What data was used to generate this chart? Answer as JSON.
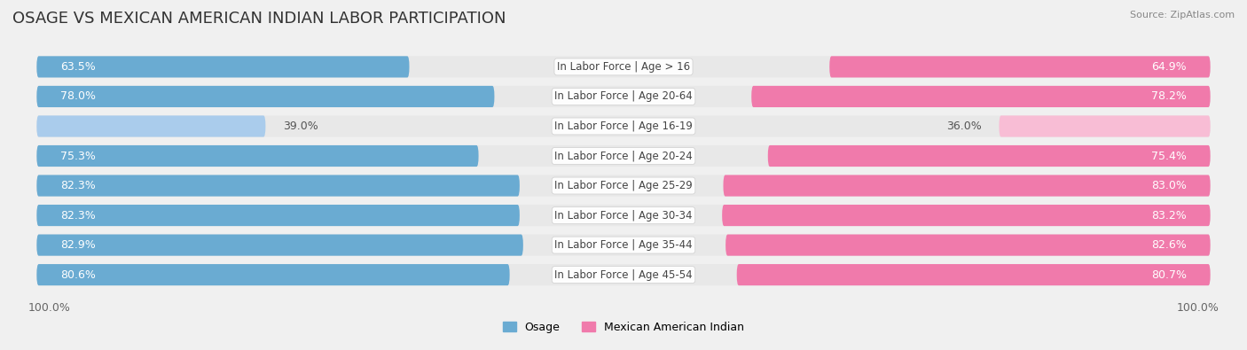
{
  "title": "OSAGE VS MEXICAN AMERICAN INDIAN LABOR PARTICIPATION",
  "source": "Source: ZipAtlas.com",
  "categories": [
    "In Labor Force | Age > 16",
    "In Labor Force | Age 20-64",
    "In Labor Force | Age 16-19",
    "In Labor Force | Age 20-24",
    "In Labor Force | Age 25-29",
    "In Labor Force | Age 30-34",
    "In Labor Force | Age 35-44",
    "In Labor Force | Age 45-54"
  ],
  "osage_values": [
    63.5,
    78.0,
    39.0,
    75.3,
    82.3,
    82.3,
    82.9,
    80.6
  ],
  "mexican_values": [
    64.9,
    78.2,
    36.0,
    75.4,
    83.0,
    83.2,
    82.6,
    80.7
  ],
  "osage_color": "#6aabd2",
  "osage_color_light": "#aaccec",
  "mexican_color": "#f07aab",
  "mexican_color_light": "#f8bdd5",
  "row_bg_color": "#e8e8e8",
  "background_color": "#f0f0f0",
  "legend_osage": "Osage",
  "legend_mexican": "Mexican American Indian",
  "xlim": 100.0,
  "title_fontsize": 13,
  "axis_label_fontsize": 9,
  "bar_label_fontsize": 9,
  "category_fontsize": 8.5
}
